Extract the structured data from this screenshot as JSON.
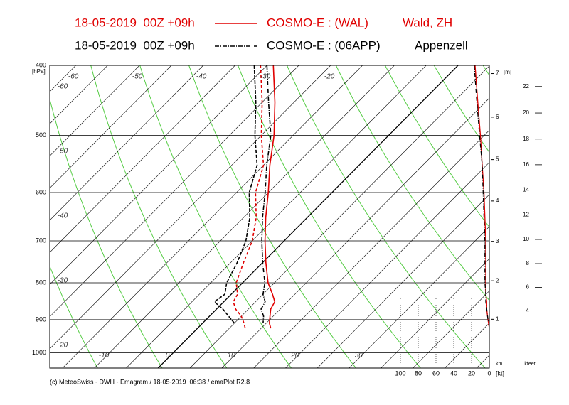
{
  "chart_data": {
    "type": "emagram",
    "ylabel": "[hPa]",
    "ylim": [
      1050,
      400
    ],
    "ylog": true,
    "yticks": [
      400,
      500,
      600,
      700,
      800,
      900,
      1000
    ],
    "xlim": [
      -17,
      52
    ],
    "temperature_labels_bottom": [
      -10,
      0,
      10,
      20,
      30
    ],
    "temperature_labels_top": [
      -60,
      -50,
      -40,
      -30,
      -20
    ],
    "temperature_labels_left": [
      -60,
      -50,
      -40,
      -30,
      -20
    ],
    "isotherms": [
      -100,
      -95,
      -90,
      -85,
      -80,
      -75,
      -70,
      -65,
      -60,
      -55,
      -50,
      -45,
      -40,
      -35,
      -30,
      -25,
      -20,
      -15,
      -10,
      -5,
      0,
      5,
      10,
      15,
      20,
      25,
      30,
      35,
      40,
      45,
      50
    ],
    "dry_adiabats": [
      250,
      260,
      270,
      280,
      290,
      300,
      310,
      320,
      330,
      340,
      350,
      360,
      370,
      380,
      390,
      400,
      410,
      420,
      430,
      440
    ],
    "wind_xlim": [
      100,
      0
    ],
    "wind_xticks": [
      100,
      80,
      60,
      40,
      20,
      0
    ],
    "wind_xlabel": "[kt]",
    "km_ticks": [
      1,
      2,
      3,
      4,
      5,
      6,
      7
    ],
    "km_unit": "[m]",
    "km_label": "km",
    "kfeet_ticks": [
      4,
      6,
      8,
      10,
      12,
      14,
      16,
      18,
      20,
      22
    ],
    "kfeet_label": "kfeet",
    "series": [
      {
        "name": "COSMO-E : (WAL)",
        "run": "18-05-2019  00Z +09h",
        "station": "Wald, ZH",
        "color": "#e00000",
        "style": "solid",
        "pressure": [
          400,
          450,
          500,
          550,
          600,
          650,
          700,
          750,
          800,
          830,
          850,
          870,
          890,
          910,
          925
        ],
        "temperature": [
          -29,
          -23,
          -18,
          -14,
          -10,
          -6.5,
          -3,
          0.5,
          4,
          6.5,
          8,
          8.5,
          9.5,
          10.5,
          11.5
        ],
        "dewpoint": [
          -31,
          -25,
          -20,
          -15,
          -12,
          -8,
          -5,
          -3,
          -1,
          1,
          1.5,
          3,
          5,
          6.5,
          7.5
        ],
        "wind_speed": [
          16,
          13,
          10,
          8,
          6,
          5,
          4,
          4,
          4,
          4,
          3,
          3,
          2,
          1,
          0
        ]
      },
      {
        "name": "COSMO-E : (06APP)",
        "run": "18-05-2019  00Z +09h",
        "station": "Appenzell",
        "color": "#000000",
        "style": "dashdot",
        "pressure": [
          400,
          450,
          500,
          550,
          600,
          650,
          700,
          750,
          800,
          830,
          850,
          870,
          890,
          910
        ],
        "temperature": [
          -30,
          -24,
          -18.5,
          -14.5,
          -10.5,
          -7,
          -3.5,
          0,
          3.5,
          5,
          6.5,
          7,
          8.5,
          9.5
        ],
        "dewpoint": [
          -32,
          -26,
          -21,
          -16,
          -13,
          -9,
          -6,
          -4,
          -2.5,
          -1,
          -1.5,
          1,
          3,
          5
        ],
        "wind_speed": [
          17,
          14,
          11,
          8,
          7,
          6,
          5,
          5,
          5,
          4,
          4,
          3,
          2,
          1
        ]
      }
    ],
    "source": "(c) MeteoSwiss - DWH - Emagram / 18-05-2019  06:38 / emaPlot R2.8"
  }
}
